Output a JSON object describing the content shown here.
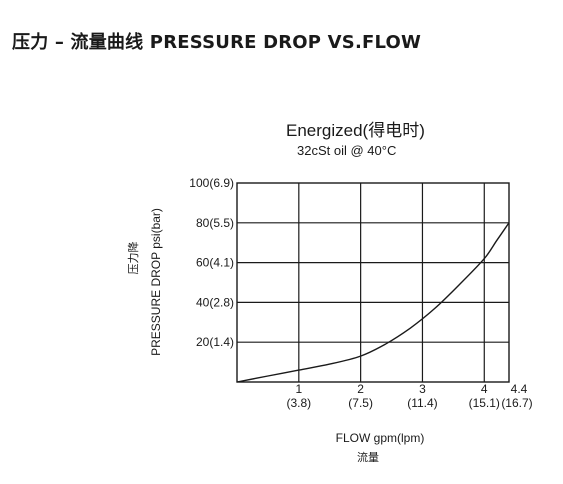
{
  "page": {
    "title": "压力 – 流量曲线 PRESSURE DROP VS.FLOW"
  },
  "chart_data": {
    "type": "line",
    "title": "Energized(得电时)",
    "subtitle": "32cSt oil @ 40°C",
    "xlabel": "FLOW gpm(lpm)",
    "xlabel_cn": "流量",
    "ylabel": "PRESSURE  DROP psi(bar)",
    "ylabel_cn": "压力降",
    "xlim": [
      0,
      4.4
    ],
    "ylim": [
      0,
      100
    ],
    "grid": true,
    "x_ticks": [
      {
        "value": 1,
        "label": "1",
        "sublabel": "(3.8)"
      },
      {
        "value": 2,
        "label": "2",
        "sublabel": "(7.5)"
      },
      {
        "value": 3,
        "label": "3",
        "sublabel": "(11.4)"
      },
      {
        "value": 4,
        "label": "4",
        "sublabel": "(15.1)"
      },
      {
        "value": 4.4,
        "label": "4.4",
        "sublabel": "(16.7)"
      }
    ],
    "y_ticks": [
      {
        "value": 20,
        "label": "20(1.4)"
      },
      {
        "value": 40,
        "label": "40(2.8)"
      },
      {
        "value": 60,
        "label": "60(4.1)"
      },
      {
        "value": 80,
        "label": "80(5.5)"
      },
      {
        "value": 100,
        "label": "100(6.9)"
      }
    ],
    "series": [
      {
        "color": "#1a1a1a",
        "x": [
          0,
          0.5,
          1.0,
          1.5,
          2.0,
          2.4,
          2.8,
          3.2,
          3.6,
          4.0,
          4.2,
          4.4
        ],
        "y": [
          0,
          3,
          6,
          9,
          13,
          19,
          27,
          37,
          49,
          62,
          71,
          80
        ]
      }
    ]
  }
}
